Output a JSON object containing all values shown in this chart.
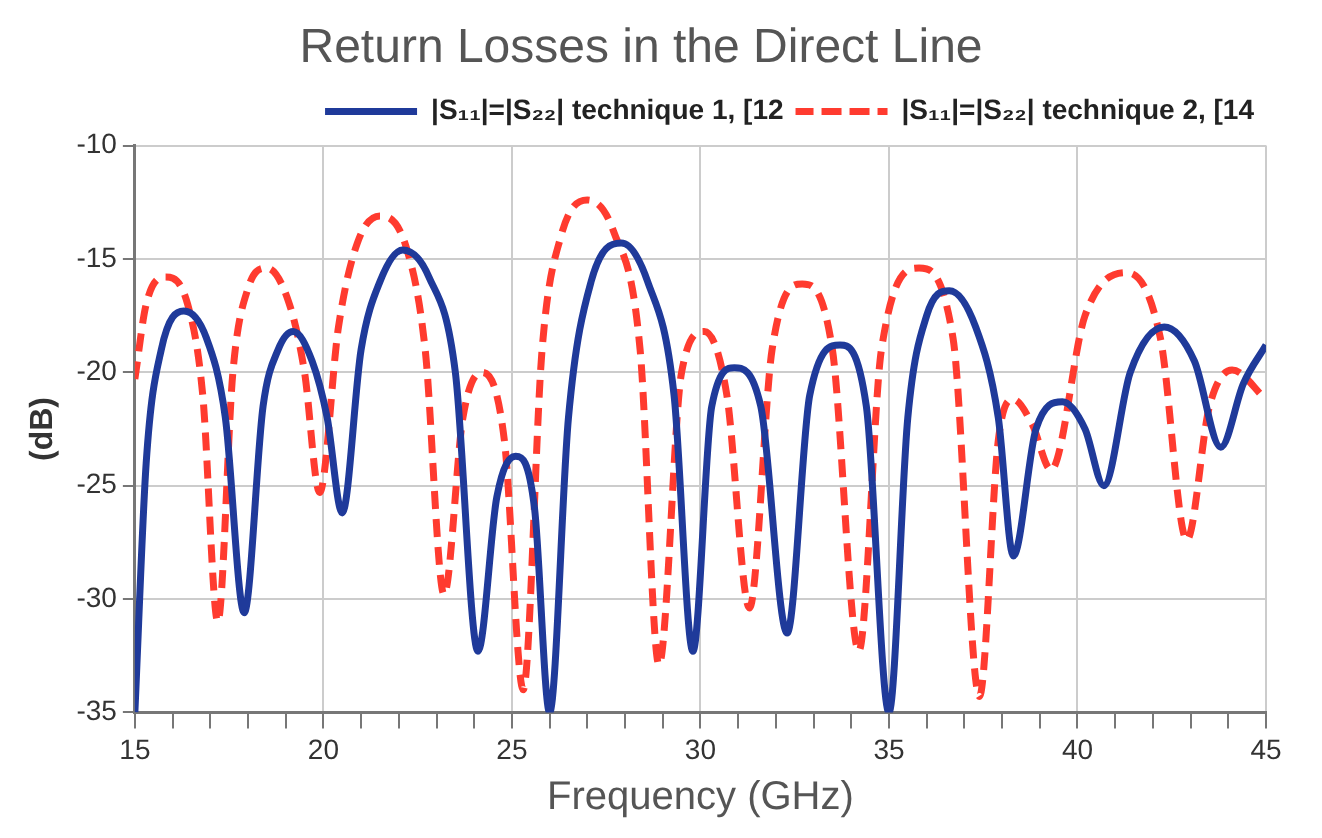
{
  "chart_data": {
    "type": "line",
    "title": "Return Losses in the Direct Line",
    "xlabel": "Frequency (GHz)",
    "ylabel": "(dB)",
    "xlim": [
      15,
      45
    ],
    "xticks": [
      15,
      {
        "value": 16,
        "label": null
      },
      {
        "value": 17,
        "label": null
      },
      {
        "value": 18,
        "label": null
      },
      {
        "value": 19,
        "label": null
      },
      20,
      {
        "value": 21,
        "label": null
      },
      {
        "value": 22,
        "label": null
      },
      {
        "value": 23,
        "label": null
      },
      {
        "value": 24,
        "label": null
      },
      25,
      {
        "value": 26,
        "label": null
      },
      {
        "value": 27,
        "label": null
      },
      {
        "value": 28,
        "label": null
      },
      {
        "value": 29,
        "label": null
      },
      30,
      {
        "value": 31,
        "label": null
      },
      {
        "value": 32,
        "label": null
      },
      {
        "value": 33,
        "label": null
      },
      {
        "value": 34,
        "label": null
      },
      35,
      {
        "value": 36,
        "label": null
      },
      {
        "value": 37,
        "label": null
      },
      {
        "value": 38,
        "label": null
      },
      {
        "value": 39,
        "label": null
      },
      40,
      {
        "value": 41,
        "label": null
      },
      {
        "value": 42,
        "label": null
      },
      {
        "value": 43,
        "label": null
      },
      {
        "value": 44,
        "label": null
      },
      45
    ],
    "ylim": [
      -35,
      -10
    ],
    "yticks": [
      -35,
      -30,
      -25,
      -20,
      -15,
      -10
    ],
    "grid": true,
    "legend": "top right",
    "marker": "none",
    "series": [
      {
        "name": "|S₁₁|=|S₂₂| technique 1, [12",
        "color": "#1f3a9a",
        "line_style": "solid",
        "x": [
          15,
          15.3,
          15.7,
          16.3,
          16.9,
          17.4,
          17.9,
          18.4,
          18.8,
          19.2,
          19.7,
          20.1,
          20.5,
          21.0,
          21.5,
          22.1,
          22.8,
          23.5,
          24.1,
          24.6,
          25.1,
          25.6,
          26.0,
          26.5,
          27.1,
          27.9,
          28.6,
          29.3,
          29.8,
          30.3,
          30.9,
          31.6,
          32.3,
          32.9,
          33.7,
          34.4,
          35.0,
          35.5,
          36.0,
          36.6,
          37.3,
          37.9,
          38.3,
          38.9,
          39.6,
          40.2,
          40.7,
          41.4,
          42.3,
          43.1,
          43.8,
          44.4,
          45
        ],
        "values": [
          -35,
          -24,
          -19,
          -17.3,
          -18.5,
          -22,
          -30.6,
          -21.5,
          -19,
          -18.2,
          -19.5,
          -22,
          -26.2,
          -19,
          -16,
          -14.6,
          -15.8,
          -20,
          -32.3,
          -25.5,
          -23.7,
          -26,
          -35,
          -22,
          -16,
          -14.3,
          -16,
          -21,
          -32.3,
          -21.5,
          -19.8,
          -21.5,
          -31.5,
          -21,
          -18.8,
          -21.5,
          -35,
          -22,
          -17.5,
          -16.4,
          -18,
          -22,
          -28.1,
          -22.5,
          -21.3,
          -22.5,
          -25,
          -20,
          -18,
          -19.5,
          -23.3,
          -20.5,
          -18.8
        ]
      },
      {
        "name": "|S₁₁|=|S₂₂| technique 2, [14",
        "color": "#ff3b2f",
        "line_style": "dashed",
        "x": [
          15,
          15.3,
          15.8,
          16.4,
          16.8,
          17.2,
          17.6,
          18.0,
          18.5,
          19.1,
          19.5,
          19.9,
          20.4,
          20.9,
          21.5,
          22.2,
          22.7,
          23.2,
          23.7,
          24.2,
          24.8,
          25.3,
          25.8,
          26.3,
          27.0,
          27.7,
          28.4,
          28.9,
          29.5,
          30.1,
          30.7,
          31.3,
          31.9,
          32.7,
          33.5,
          34.2,
          34.8,
          35.8,
          36.7,
          37.4,
          37.9,
          38.3,
          38.8,
          39.3,
          40.2,
          41.3,
          42.2,
          42.9,
          43.5,
          44.1,
          45
        ],
        "values": [
          -20.3,
          -17,
          -15.8,
          -17,
          -21,
          -31,
          -20,
          -16.3,
          -15.4,
          -17,
          -20,
          -25.3,
          -18,
          -14.3,
          -13.1,
          -14.5,
          -19,
          -29.8,
          -22,
          -20,
          -23,
          -34,
          -19,
          -14,
          -12.4,
          -13.8,
          -19,
          -32.9,
          -20,
          -18.2,
          -21,
          -30.4,
          -19,
          -16.1,
          -19,
          -32.3,
          -19,
          -15.4,
          -18.5,
          -34.3,
          -23,
          -21.2,
          -22.3,
          -24.3,
          -17.5,
          -15.6,
          -18.5,
          -27.4,
          -21.5,
          -19.9,
          -21.2
        ]
      }
    ]
  }
}
